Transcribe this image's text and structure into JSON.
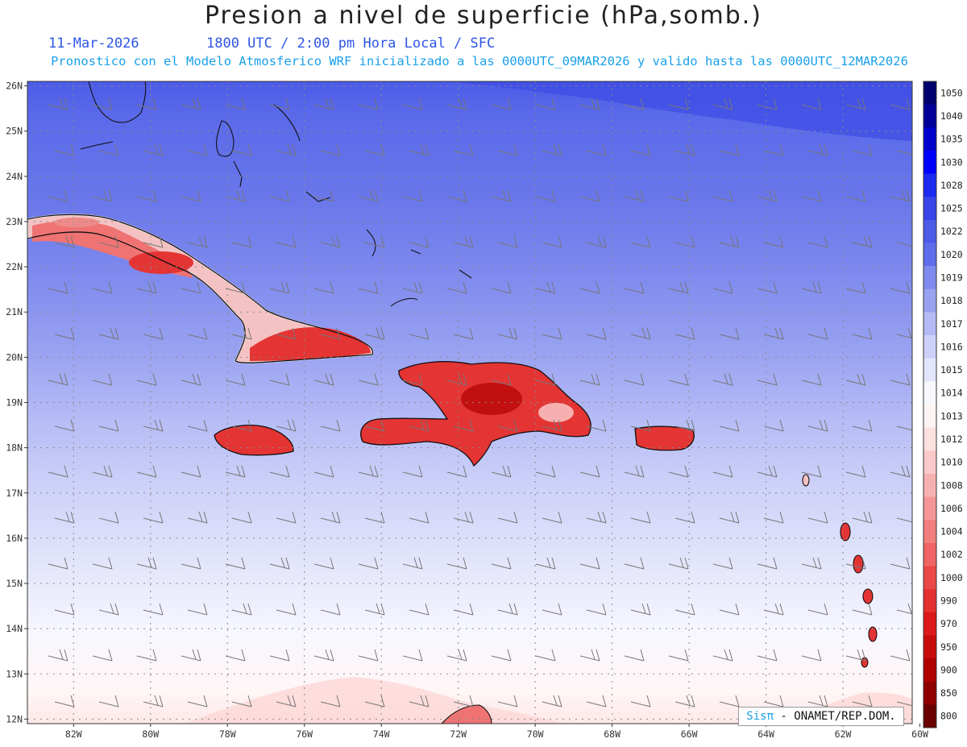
{
  "header": {
    "title": "Presion a nivel de superficie (hPa,somb.)",
    "date": "11-Mar-2026",
    "time_line": "1800 UTC / 2:00 pm Hora Local / SFC",
    "forecast_line": "Pronostico con el Modelo Atmosferico WRF inicializado a las 0000UTC_09MAR2026 y valido hasta las  0000UTC_12MAR2026"
  },
  "map": {
    "lon_range": [
      -83.2,
      -60.2
    ],
    "lat_range": [
      11.9,
      26.1
    ],
    "lon_ticks": [
      "82W",
      "80W",
      "78W",
      "76W",
      "74W",
      "72W",
      "70W",
      "68W",
      "66W",
      "64W",
      "62W",
      "60W"
    ],
    "lat_ticks": [
      "12N",
      "13N",
      "14N",
      "15N",
      "16N",
      "17N",
      "18N",
      "19N",
      "20N",
      "21N",
      "22N",
      "23N",
      "24N",
      "25N",
      "26N"
    ],
    "gridlines": true,
    "grid_color": "#8a8a8a",
    "field": "sea level pressure shaded (hPa)",
    "wind_barbs": true
  },
  "colorbar": {
    "labels": [
      "1050",
      "1040",
      "1035",
      "1030",
      "1028",
      "1025",
      "1022",
      "1020",
      "1019",
      "1018",
      "1017",
      "1016",
      "1015",
      "1014",
      "1013",
      "1012",
      "1010",
      "1008",
      "1006",
      "1004",
      "1002",
      "1000",
      "990",
      "970",
      "950",
      "900",
      "850",
      "800"
    ],
    "colors": [
      "#00006e",
      "#000099",
      "#0000cc",
      "#0000ff",
      "#1a2af0",
      "#3845ea",
      "#4c5be8",
      "#5f6dea",
      "#7e8aee",
      "#99a2f1",
      "#b4baf5",
      "#cdd1f8",
      "#e3e5fb",
      "#f7f7fe",
      "#fff4f4",
      "#fde0e0",
      "#fac9c9",
      "#f7b0b0",
      "#f59696",
      "#f37e7e",
      "#f06464",
      "#ec4848",
      "#e53030",
      "#dc1a1a",
      "#c80c0c",
      "#b00000",
      "#900000",
      "#6a0000"
    ]
  },
  "credit": {
    "brand": "Sisπ",
    "org": " - ONAMET/REP.DOM."
  }
}
